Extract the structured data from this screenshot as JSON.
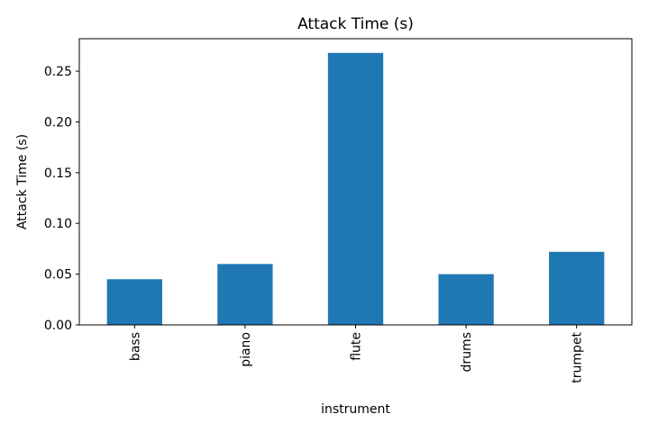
{
  "chart_data": {
    "type": "bar",
    "title": "Attack Time (s)",
    "xlabel": "instrument",
    "ylabel": "Attack Time (s)",
    "categories": [
      "bass",
      "piano",
      "flute",
      "drums",
      "trumpet"
    ],
    "values": [
      0.045,
      0.06,
      0.268,
      0.05,
      0.072
    ],
    "ylim": [
      0,
      0.282
    ],
    "yticks": [
      0.0,
      0.05,
      0.1,
      0.15,
      0.2,
      0.25
    ],
    "ytick_labels": [
      "0.00",
      "0.05",
      "0.10",
      "0.15",
      "0.20",
      "0.25"
    ],
    "bar_color": "#1f77b4",
    "grid": false,
    "legend": false
  }
}
